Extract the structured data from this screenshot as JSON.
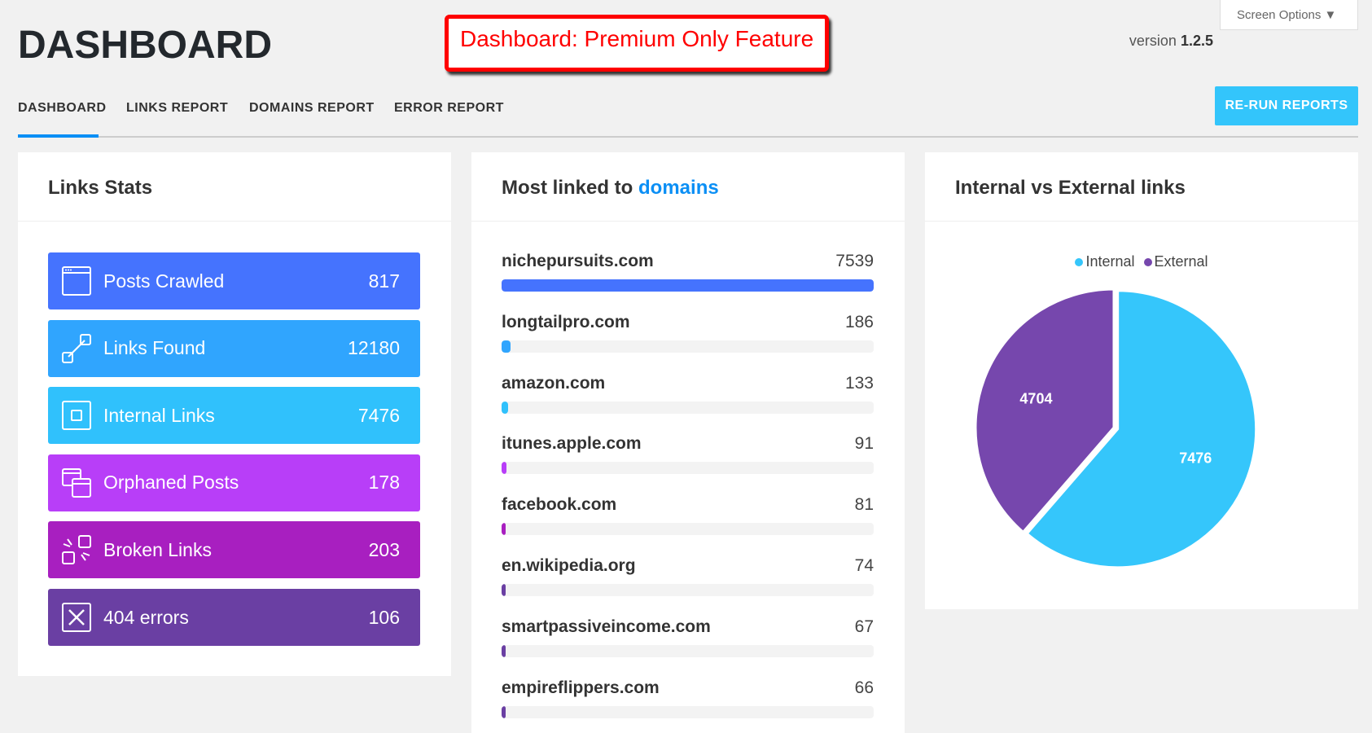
{
  "header": {
    "title": "DASHBOARD",
    "premium_notice": "Dashboard: Premium Only Feature",
    "version_label": "version",
    "version": "1.2.5",
    "screen_options": "Screen Options ▼"
  },
  "tabs": [
    {
      "label": "DASHBOARD",
      "active": true
    },
    {
      "label": "LINKS REPORT"
    },
    {
      "label": "DOMAINS REPORT"
    },
    {
      "label": "ERROR REPORT"
    }
  ],
  "rerun_label": "RE-RUN REPORTS",
  "links_stats": {
    "title": "Links Stats",
    "items": [
      {
        "label": "Posts Crawled",
        "value": "817",
        "color": "#4573fe",
        "icon": "browser-window-icon"
      },
      {
        "label": "Links Found",
        "value": "12180",
        "color": "#30a5fe",
        "icon": "link-icon"
      },
      {
        "label": "Internal Links",
        "value": "7476",
        "color": "#30c1fc",
        "icon": "square-in-square-icon"
      },
      {
        "label": "Orphaned Posts",
        "value": "178",
        "color": "#b83ef8",
        "icon": "stacked-windows-icon"
      },
      {
        "label": "Broken Links",
        "value": "203",
        "color": "#a81fc0",
        "icon": "broken-link-icon"
      },
      {
        "label": "404 errors",
        "value": "106",
        "color": "#6a3fa3",
        "icon": "x-box-icon"
      }
    ]
  },
  "domains": {
    "title_prefix": "Most linked to",
    "title_link": "domains",
    "items": [
      {
        "name": "nichepursuits.com",
        "value": 7539,
        "color": "#4573fe"
      },
      {
        "name": "longtailpro.com",
        "value": 186,
        "color": "#30a5fe"
      },
      {
        "name": "amazon.com",
        "value": 133,
        "color": "#30c1fc"
      },
      {
        "name": "itunes.apple.com",
        "value": 91,
        "color": "#b83ef8"
      },
      {
        "name": "facebook.com",
        "value": 81,
        "color": "#a81fc0"
      },
      {
        "name": "en.wikipedia.org",
        "value": 74,
        "color": "#6a3fa3"
      },
      {
        "name": "smartpassiveincome.com",
        "value": 67,
        "color": "#6a3fa3"
      },
      {
        "name": "empireflippers.com",
        "value": 66,
        "color": "#6a3fa3"
      }
    ]
  },
  "pie": {
    "title": "Internal vs External links"
  },
  "chart_data": {
    "type": "pie",
    "legend": "top",
    "categories": [
      "Internal",
      "External"
    ],
    "values": [
      7476,
      4704
    ],
    "colors": [
      "#35c6fb",
      "#7647ad"
    ]
  }
}
